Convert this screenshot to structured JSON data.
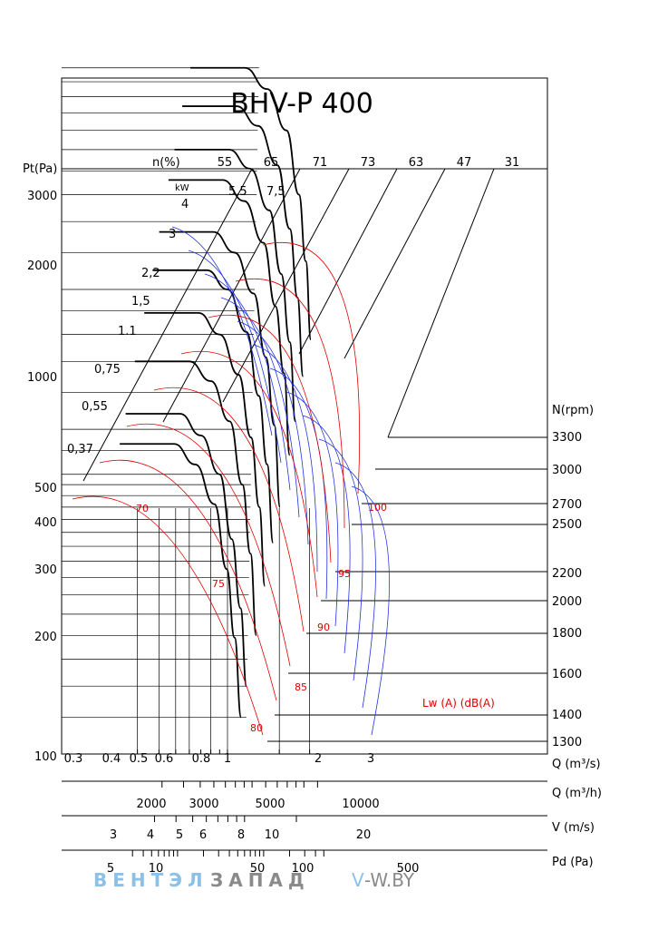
{
  "chart_data": {
    "type": "line",
    "title": "BHV-P 400",
    "y_axis": {
      "label": "Pt(Pa)",
      "scale": "log",
      "range": [
        100,
        3800
      ],
      "ticks": [
        "3000",
        "2000",
        "1000",
        "500",
        "400",
        "300",
        "200",
        "100"
      ]
    },
    "efficiency_label": "n(%)",
    "efficiency_values": [
      "55",
      "65",
      "71",
      "73",
      "63",
      "47",
      "31"
    ],
    "power_unit": "kW",
    "power_values": [
      "7,5",
      "5,5",
      "4",
      "3",
      "2,2",
      "1,5",
      "1.1",
      "0,75",
      "0,55",
      "0,37"
    ],
    "speed_label": "N(rpm)",
    "speed_values": [
      "3300",
      "3000",
      "2700",
      "2500",
      "2200",
      "2000",
      "1800",
      "1600",
      "1400",
      "1300"
    ],
    "sound_label": "Lw (A) (dB(A)",
    "sound_values": [
      "100",
      "95",
      "90",
      "85",
      "80",
      "75",
      "70"
    ],
    "axes_bottom": [
      {
        "label": "Q (m³/s)",
        "ticks": [
          "0.3",
          "0.4",
          "0.5",
          "0.6",
          "0.8",
          "1",
          "2",
          "3"
        ]
      },
      {
        "label": "Q (m³/h)",
        "ticks": [
          "2000",
          "3000",
          "5000",
          "10000"
        ]
      },
      {
        "label": "V (m/s)",
        "ticks": [
          "3",
          "4",
          "5",
          "6",
          "8",
          "10",
          "20"
        ]
      },
      {
        "label": "Pd (Pa)",
        "ticks": [
          "5",
          "10",
          "50",
          "100",
          "500"
        ]
      }
    ],
    "series": [
      {
        "rpm": 3300,
        "points": [
          [
            1.26,
            3000
          ],
          [
            1.7,
            2700
          ],
          [
            2.2,
            2200
          ],
          [
            2.6,
            1600
          ],
          [
            2.85,
            1150
          ],
          [
            3.05,
            780
          ]
        ]
      },
      {
        "rpm": 3000,
        "points": [
          [
            1.13,
            2480
          ],
          [
            1.5,
            2250
          ],
          [
            1.95,
            1850
          ],
          [
            2.3,
            1350
          ],
          [
            2.55,
            960
          ],
          [
            2.75,
            650
          ]
        ]
      },
      {
        "rpm": 2700,
        "points": [
          [
            1.02,
            2000
          ],
          [
            1.35,
            1820
          ],
          [
            1.75,
            1480
          ],
          [
            2.05,
            1080
          ],
          [
            2.3,
            770
          ],
          [
            2.48,
            520
          ]
        ]
      },
      {
        "rpm": 2500,
        "points": [
          [
            0.94,
            1720
          ],
          [
            1.25,
            1550
          ],
          [
            1.62,
            1260
          ],
          [
            1.9,
            920
          ],
          [
            2.13,
            660
          ],
          [
            2.3,
            440
          ]
        ]
      },
      {
        "rpm": 2200,
        "points": [
          [
            0.83,
            1330
          ],
          [
            1.1,
            1200
          ],
          [
            1.42,
            980
          ],
          [
            1.67,
            715
          ],
          [
            1.87,
            510
          ],
          [
            2.02,
            340
          ]
        ]
      },
      {
        "rpm": 2000,
        "points": [
          [
            0.76,
            1100
          ],
          [
            1.0,
            1000
          ],
          [
            1.29,
            810
          ],
          [
            1.52,
            590
          ],
          [
            1.7,
            420
          ],
          [
            1.84,
            285
          ]
        ]
      },
      {
        "rpm": 1800,
        "points": [
          [
            0.68,
            890
          ],
          [
            0.9,
            800
          ],
          [
            1.16,
            655
          ],
          [
            1.37,
            480
          ],
          [
            1.53,
            340
          ],
          [
            1.65,
            230
          ]
        ]
      },
      {
        "rpm": 1600,
        "points": [
          [
            0.6,
            700
          ],
          [
            0.8,
            635
          ],
          [
            1.03,
            520
          ],
          [
            1.22,
            380
          ],
          [
            1.36,
            270
          ],
          [
            1.47,
            180
          ]
        ]
      },
      {
        "rpm": 1400,
        "points": [
          [
            0.53,
            540
          ],
          [
            0.7,
            485
          ],
          [
            0.9,
            400
          ],
          [
            1.06,
            290
          ],
          [
            1.19,
            206
          ],
          [
            1.29,
            140
          ]
        ]
      },
      {
        "rpm": 1300,
        "points": [
          [
            0.49,
            465
          ],
          [
            0.65,
            420
          ],
          [
            0.84,
            345
          ],
          [
            0.99,
            250
          ],
          [
            1.1,
            178
          ],
          [
            1.2,
            120
          ]
        ]
      }
    ]
  },
  "watermark": {
    "part1": "ВЕНТЭЛ",
    "part2": "ЗАПАД",
    "site_v": "V",
    "site_rest": "-W.BY"
  },
  "colors": {
    "curve": "#000000",
    "efficiency_line": "#2030e0",
    "sound_line": "#e00000",
    "watermark_blue": "#8cc0e4",
    "watermark_gray": "#8a8a8a"
  }
}
